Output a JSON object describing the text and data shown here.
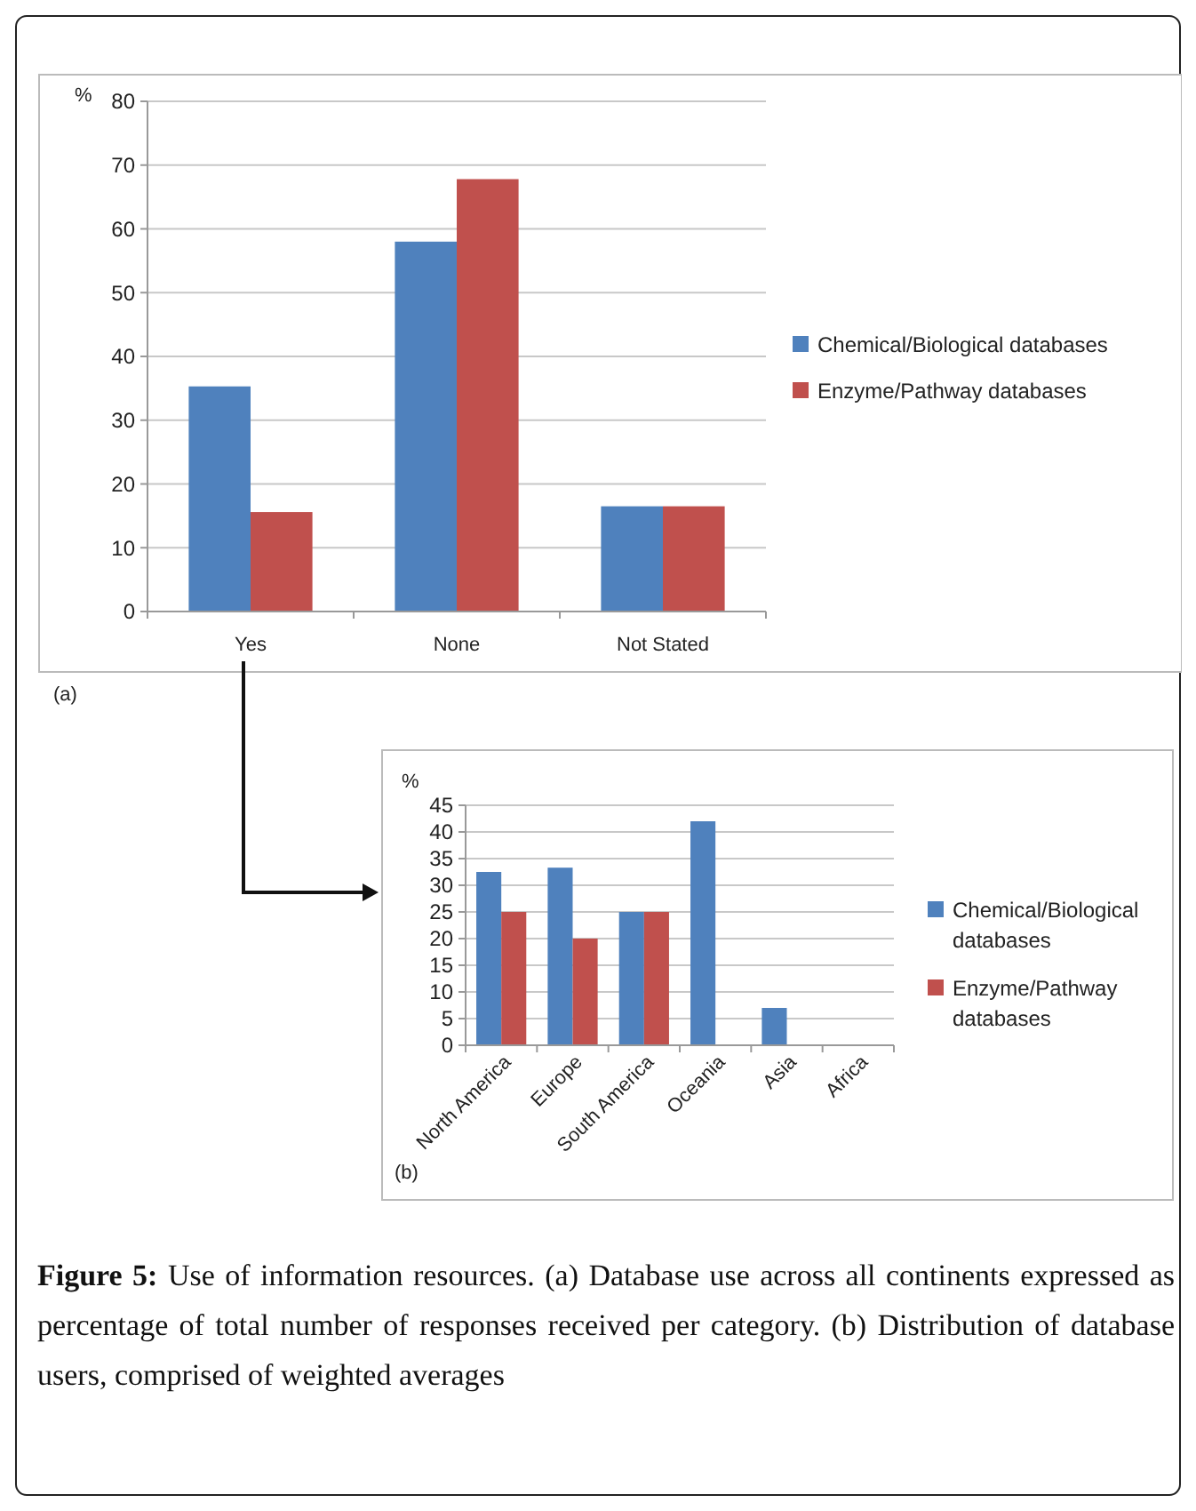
{
  "chart_data": [
    {
      "type": "bar",
      "ylabel": "%",
      "categories": [
        "Yes",
        "None",
        "Not Stated"
      ],
      "series": [
        {
          "name": "Chemical/Biological databases",
          "color": "#4f81bd",
          "values": [
            35.3,
            58,
            16.5
          ]
        },
        {
          "name": "Enzyme/Pathway databases",
          "color": "#c0504d",
          "values": [
            15.6,
            67.8,
            16.5
          ]
        }
      ],
      "ylim": [
        0,
        80
      ],
      "yticks": [
        0,
        10,
        20,
        30,
        40,
        50,
        60,
        70,
        80
      ],
      "grid": "y",
      "legend": "right",
      "annotations": [
        "(a)"
      ]
    },
    {
      "type": "bar",
      "ylabel": "%",
      "categories": [
        "North America",
        "Europe",
        "South America",
        "Oceania",
        "Asia",
        "Africa"
      ],
      "series": [
        {
          "name": "Chemical/Biological databases",
          "color": "#4f81bd",
          "values": [
            32.5,
            33.3,
            25,
            42,
            7,
            0
          ]
        },
        {
          "name": "Enzyme/Pathway databases",
          "color": "#c0504d",
          "values": [
            25,
            20,
            25,
            0,
            0,
            0
          ]
        }
      ],
      "ylim": [
        0,
        45
      ],
      "yticks": [
        0,
        5,
        10,
        15,
        20,
        25,
        30,
        35,
        40,
        45
      ],
      "grid": "y",
      "legend": "right",
      "annotations": [
        "(b)",
        "Figure 5: Use of information resources. (a) Database use across all continents expressed as percentage of total number of responses received per category. (b) Distribution of database users, comprised of weighted averages"
      ]
    }
  ]
}
